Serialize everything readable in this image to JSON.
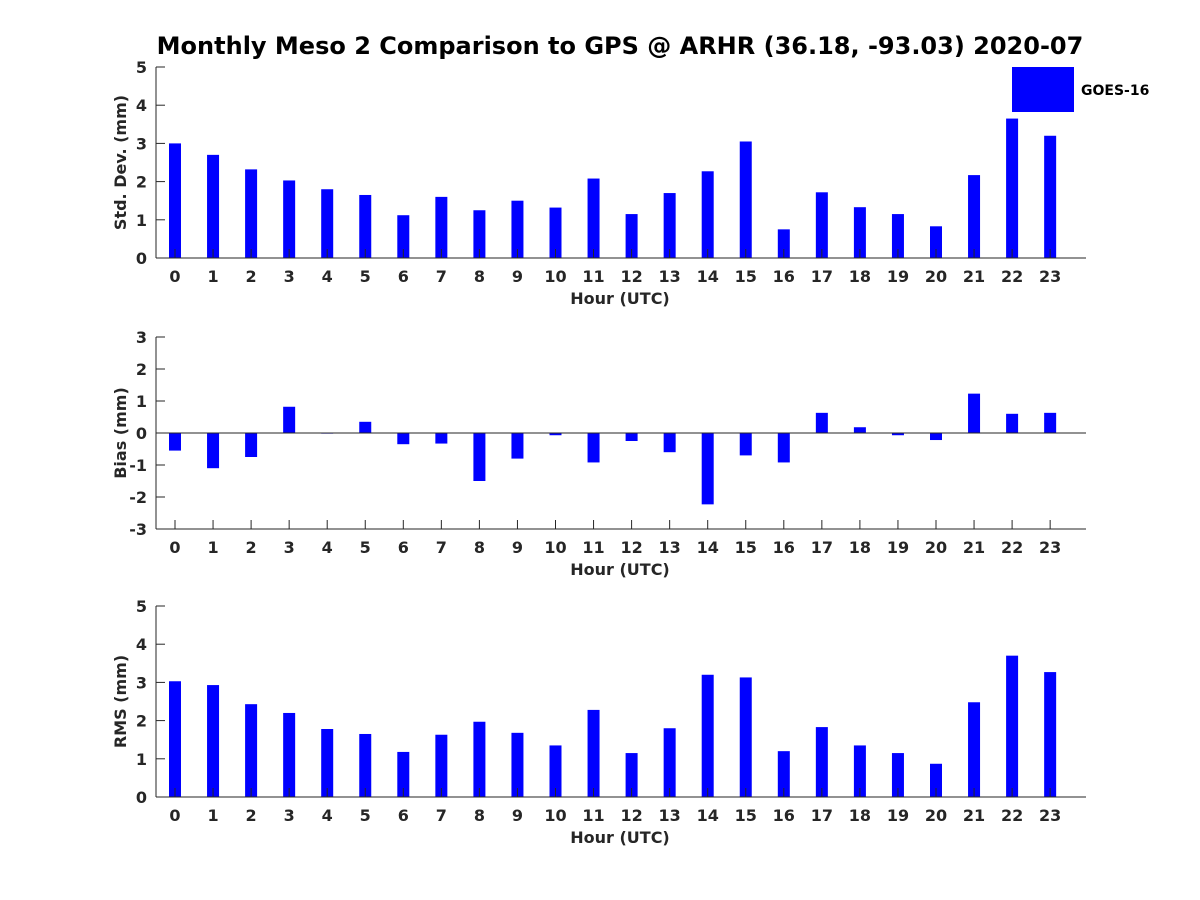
{
  "chart_data": {
    "title": "Monthly Meso 2 Comparison to GPS @ ARHR (36.18, -93.03) 2020-07",
    "legend": {
      "label": "GOES-16",
      "color": "#0000ff",
      "placement": "top-right"
    },
    "bar_color": "#0000ff",
    "panels": [
      {
        "type": "bar",
        "id": "stddev",
        "xlabel": "Hour (UTC)",
        "ylabel": "Std. Dev. (mm)",
        "ylim": [
          0,
          5
        ],
        "yticks": [
          0,
          1,
          2,
          3,
          4,
          5
        ],
        "categories": [
          "0",
          "1",
          "2",
          "3",
          "4",
          "5",
          "6",
          "7",
          "8",
          "9",
          "10",
          "11",
          "12",
          "13",
          "14",
          "15",
          "16",
          "17",
          "18",
          "19",
          "20",
          "21",
          "22",
          "23"
        ],
        "values": [
          3.0,
          2.7,
          2.32,
          2.03,
          1.8,
          1.65,
          1.12,
          1.6,
          1.25,
          1.5,
          1.32,
          2.08,
          1.15,
          1.7,
          2.27,
          3.05,
          0.75,
          1.72,
          1.33,
          1.15,
          0.83,
          2.17,
          3.65,
          3.2
        ]
      },
      {
        "type": "bar",
        "id": "bias",
        "xlabel": "Hour (UTC)",
        "ylabel": "Bias (mm)",
        "ylim": [
          -3,
          3
        ],
        "yticks": [
          -3,
          -2,
          -1,
          0,
          1,
          2,
          3
        ],
        "categories": [
          "0",
          "1",
          "2",
          "3",
          "4",
          "5",
          "6",
          "7",
          "8",
          "9",
          "10",
          "11",
          "12",
          "13",
          "14",
          "15",
          "16",
          "17",
          "18",
          "19",
          "20",
          "21",
          "22",
          "23"
        ],
        "values": [
          -0.55,
          -1.1,
          -0.75,
          0.82,
          -0.02,
          0.35,
          -0.35,
          -0.33,
          -1.5,
          -0.8,
          -0.07,
          -0.92,
          -0.25,
          -0.6,
          -2.23,
          -0.7,
          -0.92,
          0.63,
          0.18,
          -0.07,
          -0.22,
          1.23,
          0.6,
          0.63
        ]
      },
      {
        "type": "bar",
        "id": "rms",
        "xlabel": "Hour (UTC)",
        "ylabel": "RMS (mm)",
        "ylim": [
          0,
          5
        ],
        "yticks": [
          0,
          1,
          2,
          3,
          4,
          5
        ],
        "categories": [
          "0",
          "1",
          "2",
          "3",
          "4",
          "5",
          "6",
          "7",
          "8",
          "9",
          "10",
          "11",
          "12",
          "13",
          "14",
          "15",
          "16",
          "17",
          "18",
          "19",
          "20",
          "21",
          "22",
          "23"
        ],
        "values": [
          3.03,
          2.93,
          2.43,
          2.2,
          1.78,
          1.65,
          1.18,
          1.63,
          1.97,
          1.68,
          1.35,
          2.28,
          1.15,
          1.8,
          3.2,
          3.13,
          1.2,
          1.83,
          1.35,
          1.15,
          0.87,
          2.48,
          3.7,
          3.27
        ]
      }
    ]
  }
}
